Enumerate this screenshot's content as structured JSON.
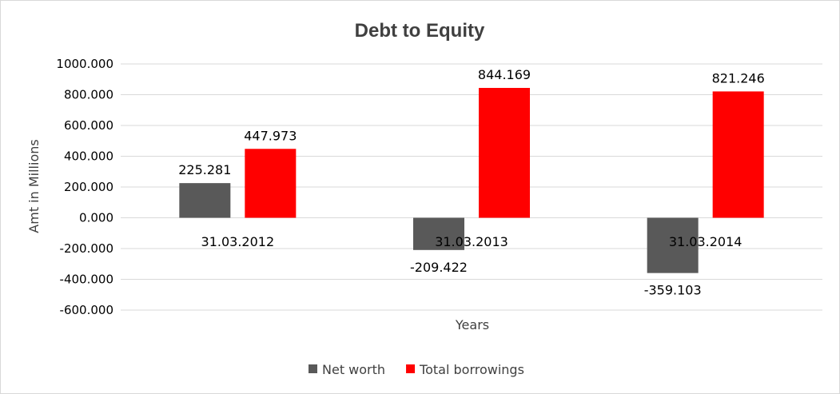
{
  "chart_data": {
    "type": "bar",
    "title": "Debt to Equity",
    "xlabel": "Years",
    "ylabel": "Amt in Millions",
    "categories": [
      "31.03.2012",
      "31.03.2013",
      "31.03.2014"
    ],
    "series": [
      {
        "name": "Net worth",
        "values": [
          225.281,
          -209.422,
          -359.103
        ],
        "color": "#595959",
        "labels": [
          "225.281",
          "-209.422",
          "-359.103"
        ]
      },
      {
        "name": "Total borrowings",
        "values": [
          447.973,
          844.169,
          821.246
        ],
        "color": "#ff0000",
        "labels": [
          "447.973",
          "844.169",
          "821.246"
        ]
      }
    ],
    "ylim": [
      -600,
      1000
    ],
    "yticks": [
      1000,
      800,
      600,
      400,
      200,
      0,
      -200,
      -400,
      -600
    ],
    "ytick_labels": [
      "1000.000",
      "800.000",
      "600.000",
      "400.000",
      "200.000",
      "0.000",
      "-200.000",
      "-400.000",
      "-600.000"
    ],
    "grid": true,
    "gridline_color": "#d9d9d9",
    "legend_position": "bottom"
  }
}
